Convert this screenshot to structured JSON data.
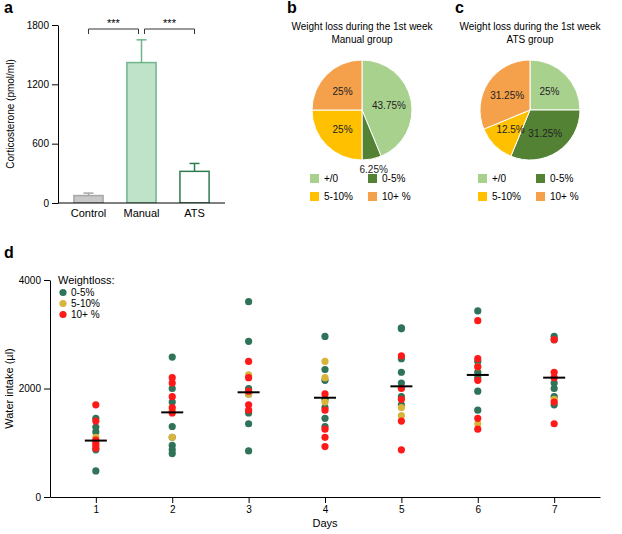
{
  "chart_data": [
    {
      "type": "bar",
      "panel_label": "a",
      "categories": [
        "Control",
        "Manual",
        "ATS"
      ],
      "values": [
        75,
        1420,
        320
      ],
      "errors": [
        25,
        230,
        80
      ],
      "colors": [
        "#c8c8c8",
        "#bfe3c8",
        "#ffffff"
      ],
      "ylabel": "Corticosterone (pmol/ml)",
      "ylim": [
        0,
        1800
      ],
      "yticks": [
        0,
        600,
        1200,
        1800
      ],
      "grid": false,
      "annotations": [
        {
          "text": "***",
          "from": 0,
          "to": 1
        },
        {
          "text": "***",
          "from": 1,
          "to": 2
        }
      ]
    },
    {
      "type": "pie",
      "panel_label": "b",
      "title": "Weight loss during the 1st week",
      "subtitle": "Manual group",
      "categories": [
        "+/0",
        "0-5%",
        "5-10%",
        "10+ %"
      ],
      "values": [
        43.75,
        6.25,
        25,
        25
      ],
      "value_labels": [
        "43.75%",
        "6.25%",
        "25%",
        "25%"
      ],
      "colors": [
        "#a9d18e",
        "#548235",
        "#ffc000",
        "#f5a04a"
      ],
      "data_labels": true,
      "legend": "bottom"
    },
    {
      "type": "pie",
      "panel_label": "c",
      "title": "Weight loss during the 1st week",
      "subtitle": "ATS group",
      "categories": [
        "+/0",
        "0-5%",
        "5-10%",
        "10+ %"
      ],
      "values": [
        25,
        31.25,
        12.5,
        31.25
      ],
      "value_labels": [
        "25%",
        "31.25%",
        "12.5%",
        "31.25%"
      ],
      "colors": [
        "#a9d18e",
        "#548235",
        "#ffc000",
        "#f5a04a"
      ],
      "data_labels": true,
      "legend": "bottom"
    },
    {
      "type": "scatter",
      "panel_label": "d",
      "xlabel": "Days",
      "ylabel": "Water intake (µl)",
      "xlim": [
        0.4,
        7.6
      ],
      "xticks": [
        1,
        2,
        3,
        4,
        5,
        6,
        7
      ],
      "ylim": [
        0,
        4000
      ],
      "yticks": [
        0,
        2000,
        4000
      ],
      "grid": false,
      "legend": "upper left",
      "legend_title": "Weightloss:",
      "series": [
        {
          "name": "0-5%",
          "color": "#2f7358",
          "marker": "circle",
          "x": [
            1,
            1,
            1,
            1,
            1,
            2,
            2,
            2,
            2,
            2,
            2,
            2,
            2,
            3,
            3,
            3,
            3,
            3,
            3,
            3,
            4,
            4,
            4,
            4,
            4,
            4,
            4,
            5,
            5,
            5,
            5,
            5,
            5,
            5,
            6,
            6,
            6,
            6,
            6,
            6,
            7,
            7,
            7,
            7,
            7,
            7
          ],
          "values": [
            480,
            870,
            1200,
            1290,
            1450,
            2580,
            2000,
            1750,
            1300,
            1100,
            950,
            800,
            870,
            3600,
            2870,
            2000,
            1900,
            1550,
            850,
            1350,
            2960,
            2350,
            2150,
            1800,
            1650,
            1450,
            1300,
            3120,
            3100,
            2550,
            2300,
            2100,
            1850,
            1700,
            3430,
            2500,
            2300,
            2200,
            1950,
            1600,
            2960,
            2900,
            2100,
            1850,
            1700,
            2000
          ]
        },
        {
          "name": "5-10%",
          "color": "#d9b43a",
          "marker": "circle",
          "x": [
            1,
            2,
            2,
            3,
            3,
            4,
            4,
            4,
            5,
            5,
            6,
            6,
            7
          ],
          "values": [
            1100,
            1100,
            1600,
            2250,
            1900,
            2500,
            2200,
            1750,
            1500,
            1650,
            2400,
            1350,
            1800
          ]
        },
        {
          "name": "10+ %",
          "color": "#ff1a1a",
          "marker": "circle",
          "x": [
            1,
            1,
            1,
            1,
            1,
            1,
            2,
            2,
            2,
            2,
            2,
            3,
            3,
            3,
            3,
            3,
            4,
            4,
            4,
            4,
            4,
            5,
            5,
            5,
            5,
            5,
            6,
            6,
            6,
            6,
            6,
            6,
            7,
            7,
            7,
            7,
            7
          ],
          "values": [
            1700,
            1400,
            1000,
            950,
            1050,
            900,
            2200,
            2100,
            1650,
            1550,
            1850,
            2500,
            2200,
            1700,
            1600,
            1950,
            1900,
            1600,
            1250,
            1100,
            930,
            2000,
            1800,
            1400,
            870,
            2600,
            3250,
            2550,
            2400,
            2150,
            1450,
            1250,
            2900,
            2300,
            2200,
            1750,
            1350
          ]
        }
      ],
      "medians": {
        "x": [
          1,
          2,
          3,
          4,
          5,
          6,
          7
        ],
        "values": [
          1040,
          1560,
          1930,
          1830,
          2040,
          2250,
          2200
        ]
      }
    }
  ]
}
